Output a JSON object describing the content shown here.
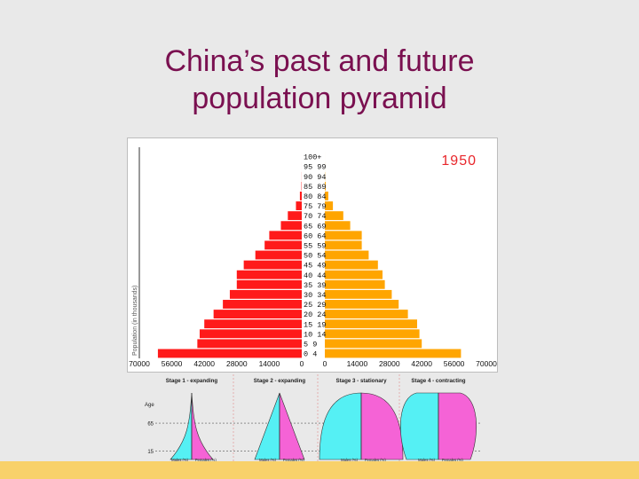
{
  "slide": {
    "title_line1": "China’s past and future",
    "title_line2": "population pyramid"
  },
  "colors": {
    "title": "#7a1050",
    "male_bar": "#ff1a1a",
    "female_bar": "#ffa500",
    "year_label": "#e8262b",
    "stage_male_fill": "#55f0f4",
    "stage_female_fill": "#f563d6",
    "bottom_bar": "#f8d16a",
    "background": "#e9e9e9"
  },
  "chart_data": [
    {
      "type": "bar",
      "orientation": "horizontal-pyramid",
      "year_label": "1950",
      "ylabel": "Population (in thousands)",
      "age_groups": [
        "0 - 4",
        "5 - 9",
        "10 - 14",
        "15 - 19",
        "20 - 24",
        "25 - 29",
        "30 - 34",
        "35 - 39",
        "40 - 44",
        "45 - 49",
        "50 - 54",
        "55 - 59",
        "60 - 64",
        "65 - 69",
        "70 - 74",
        "75 - 79",
        "80 - 84",
        "85 - 89",
        "90 - 94",
        "95 - 99",
        "100 +"
      ],
      "age_labels_displayed": [
        "0 4",
        "5 9",
        "10 14",
        "15 19",
        "20 24",
        "25 29",
        "30 34",
        "35 39",
        "40 44",
        "45 49",
        "50 54",
        "55 59",
        "60 64",
        "65 69",
        "70 74",
        "75 79",
        "80 84",
        "85 89",
        "90 94",
        "95 99",
        "100+"
      ],
      "series": [
        {
          "side": "left",
          "values": [
            62000,
            45000,
            44000,
            42000,
            38000,
            34000,
            31000,
            28000,
            28000,
            25000,
            20000,
            16000,
            14000,
            9000,
            6000,
            2500,
            800,
            150,
            40,
            10,
            2
          ]
        },
        {
          "side": "right",
          "values": [
            59000,
            42000,
            41000,
            40000,
            36000,
            32000,
            29000,
            26000,
            25000,
            23000,
            19000,
            16000,
            16000,
            11000,
            8000,
            3500,
            1500,
            350,
            100,
            25,
            5
          ]
        }
      ],
      "xlim": [
        0,
        70000
      ],
      "x_tick_labels_left": [
        "70000",
        "56000",
        "42000",
        "28000",
        "14000",
        "0"
      ],
      "x_tick_labels_right": [
        "0",
        "14000",
        "28000",
        "42000",
        "56000",
        "70000"
      ]
    },
    {
      "type": "area",
      "y_axis_label": "Age",
      "y_ticks": [
        {
          "label": "65",
          "value": 65
        },
        {
          "label": "15",
          "value": 15
        }
      ],
      "stages": [
        {
          "name": "Stage 1 - expanding",
          "shape": "expanding"
        },
        {
          "name": "Stage 2 - expanding",
          "shape": "triangle"
        },
        {
          "name": "Stage 3 - stationary",
          "shape": "stationary"
        },
        {
          "name": "Stage 4 - contracting",
          "shape": "contracting"
        }
      ],
      "x_label_male": "Males (%)",
      "x_label_female": "Females (%)"
    }
  ]
}
